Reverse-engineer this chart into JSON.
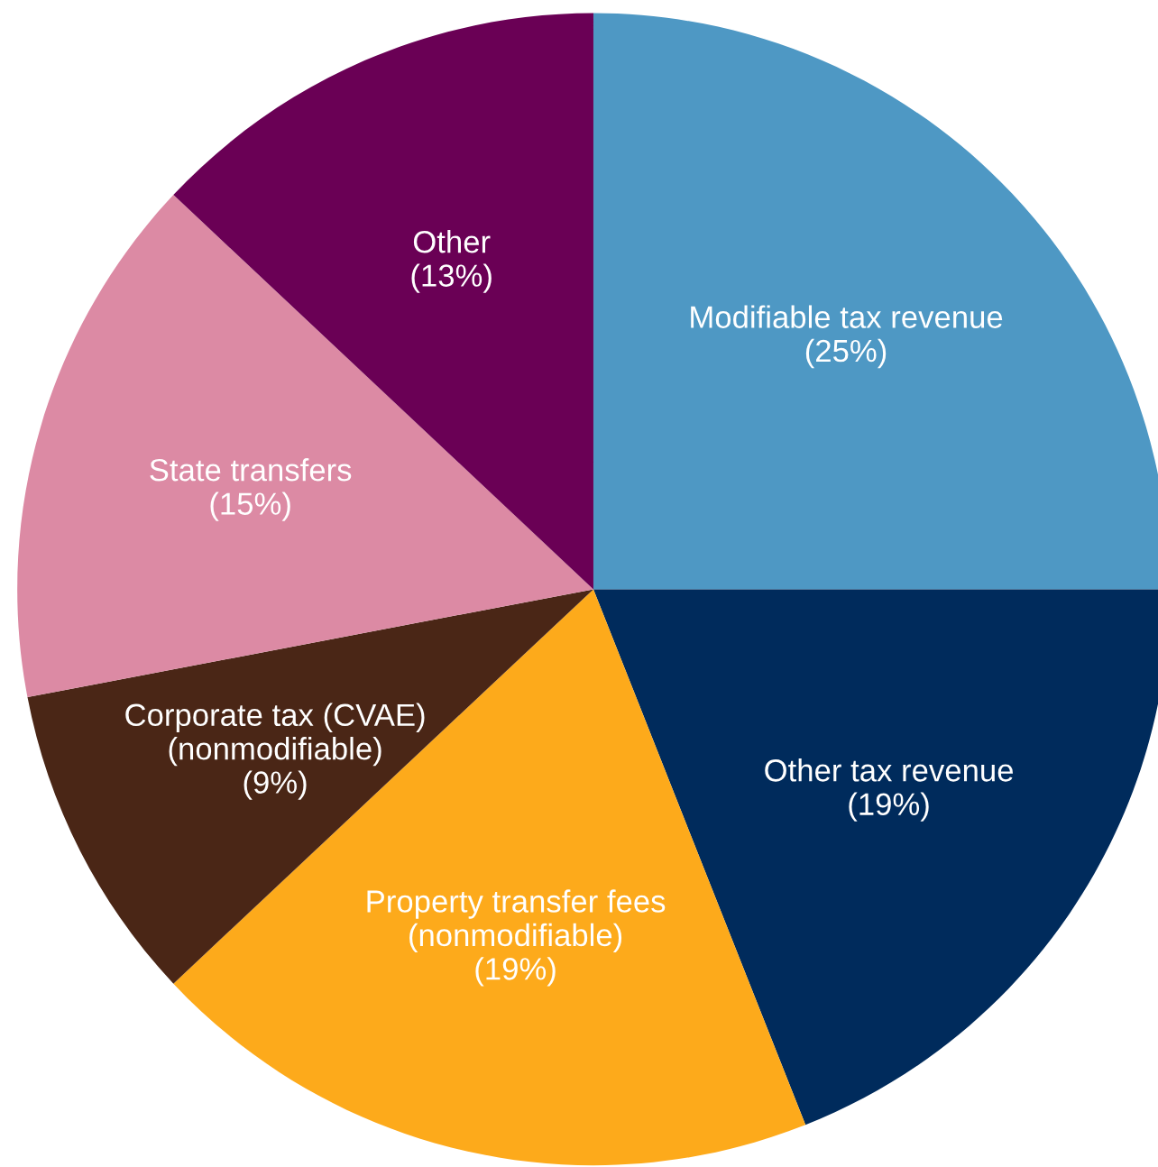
{
  "chart_data": {
    "type": "pie",
    "categories": [
      "Modifiable tax revenue",
      "Other tax revenue",
      "Property transfer fees\n(nonmodifiable)",
      "Corporate tax (CVAE)\n(nonmodifiable)",
      "State transfers",
      "Other"
    ],
    "values": [
      25,
      19,
      19,
      9,
      15,
      13
    ],
    "value_labels": [
      "(25%)",
      "(19%)",
      "(19%)",
      "(9%)",
      "(15%)",
      "(13%)"
    ],
    "colors": [
      "#4e98c4",
      "#002b5c",
      "#fdaa1b",
      "#4a2616",
      "#dc8aa4",
      "#6a0055"
    ],
    "legend": false
  }
}
